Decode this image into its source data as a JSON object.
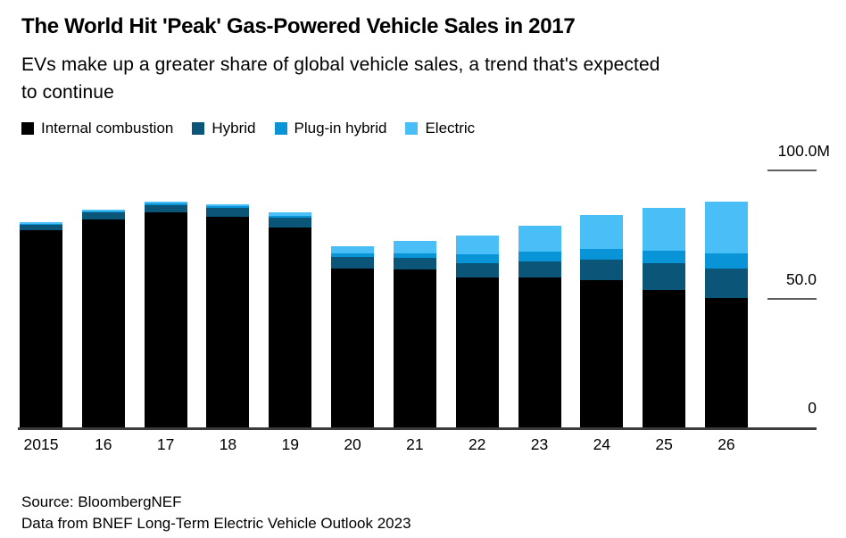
{
  "header": {
    "title": "The World Hit 'Peak' Gas-Powered Vehicle Sales in 2017",
    "subtitle": "EVs make up a greater share of global vehicle sales, a trend that's expected to continue",
    "subtitle_lines": [
      "EVs make up a greater share of global vehicle sales, a trend that's expected",
      "to continue"
    ]
  },
  "legend": [
    {
      "label": "Internal combustion",
      "color": "#000000"
    },
    {
      "label": "Hybrid",
      "color": "#0a5578"
    },
    {
      "label": "Plug-in hybrid",
      "color": "#0994d8"
    },
    {
      "label": "Electric",
      "color": "#4abef7"
    }
  ],
  "chart_data": {
    "type": "bar",
    "stacked": true,
    "title": "The World Hit 'Peak' Gas-Powered Vehicle Sales in 2017",
    "unit": "millions of vehicles per year",
    "categories": [
      "2015",
      "16",
      "17",
      "18",
      "19",
      "20",
      "21",
      "22",
      "23",
      "24",
      "25",
      "26"
    ],
    "series": [
      {
        "name": "Internal combustion",
        "color": "#000000",
        "values": [
          76.7,
          80.8,
          83.6,
          81.8,
          77.8,
          61.8,
          61.4,
          58.5,
          58.3,
          57.3,
          53.6,
          50.4
        ]
      },
      {
        "name": "Hybrid",
        "color": "#0a5578",
        "values": [
          2.3,
          3.0,
          2.9,
          3.7,
          3.7,
          4.4,
          4.7,
          5.5,
          6.3,
          7.9,
          10.2,
          11.3
        ]
      },
      {
        "name": "Plug-in hybrid",
        "color": "#0994d8",
        "values": [
          0.3,
          0.4,
          0.5,
          0.5,
          0.9,
          1.6,
          1.7,
          3.5,
          4.0,
          4.2,
          5.1,
          5.9
        ]
      },
      {
        "name": "Electric",
        "color": "#4abef7",
        "values": [
          0.4,
          0.6,
          0.7,
          0.7,
          1.4,
          2.6,
          4.7,
          7.0,
          9.8,
          13.3,
          16.4,
          20.2
        ]
      }
    ],
    "y_axis": {
      "ticks": [
        {
          "label": "100.0M",
          "value": 100
        },
        {
          "label": "50.0",
          "value": 50
        },
        {
          "label": "0",
          "value": 0
        }
      ],
      "max": 100
    },
    "x_axis_labels": [
      "2015",
      "16",
      "17",
      "18",
      "19",
      "20",
      "21",
      "22",
      "23",
      "24",
      "25",
      "26"
    ],
    "legend_position": "top",
    "grid": false
  },
  "footer": {
    "source": "Source: BloombergNEF",
    "note": "Data from BNEF Long-Term Electric Vehicle Outlook 2023"
  }
}
